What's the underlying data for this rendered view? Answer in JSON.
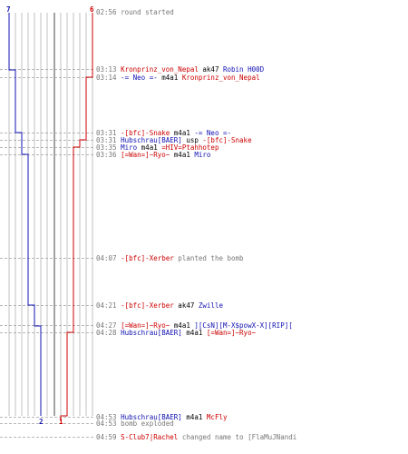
{
  "colors": {
    "team_blue": "#1010b0",
    "team_red": "#cc0000",
    "text_gray": "#777777",
    "text_dark": "#000000",
    "grid": "#c0c0c0",
    "grid_center": "#707070",
    "dash": "#a0a0a0"
  },
  "header": {
    "blue_count": "7",
    "red_count": "6"
  },
  "footer": {
    "blue_count": "2",
    "red_count": "1"
  },
  "events": [
    {
      "time": "02:56",
      "parts": [
        {
          "t": "round started",
          "c": "text_gray"
        }
      ]
    },
    {
      "time": "03:13",
      "parts": [
        {
          "t": "Kronprinz_von_Nepal",
          "c": "team_red"
        },
        {
          "t": " ak47 ",
          "c": "text_dark"
        },
        {
          "t": "Robin H00D",
          "c": "team_blue"
        }
      ]
    },
    {
      "time": "03:14",
      "parts": [
        {
          "t": "-= Neo =-",
          "c": "team_blue"
        },
        {
          "t": " m4a1 ",
          "c": "text_dark"
        },
        {
          "t": "Kronprinz_von_Nepal",
          "c": "team_red"
        }
      ]
    },
    {
      "time": "03:31",
      "parts": [
        {
          "t": "-[bfc]-Snake",
          "c": "team_red"
        },
        {
          "t": " m4a1 ",
          "c": "text_dark"
        },
        {
          "t": "-= Neo =-",
          "c": "team_blue"
        }
      ]
    },
    {
      "time": "03:31",
      "parts": [
        {
          "t": "Hubschrau[BAER]",
          "c": "team_blue"
        },
        {
          "t": " usp ",
          "c": "text_dark"
        },
        {
          "t": "-[bfc]-Snake",
          "c": "team_red"
        }
      ]
    },
    {
      "time": "03:35",
      "parts": [
        {
          "t": "Miro",
          "c": "team_blue"
        },
        {
          "t": " m4a1 ",
          "c": "text_dark"
        },
        {
          "t": "=HIV=Ptahhotep",
          "c": "team_red"
        }
      ]
    },
    {
      "time": "03:36",
      "parts": [
        {
          "t": "[=Wan=]~Ryo~",
          "c": "team_red"
        },
        {
          "t": " m4a1 ",
          "c": "text_dark"
        },
        {
          "t": "Miro",
          "c": "team_blue"
        }
      ]
    },
    {
      "time": "04:07",
      "parts": [
        {
          "t": "-[bfc]-Xerber",
          "c": "team_red"
        },
        {
          "t": " planted the bomb",
          "c": "text_gray"
        }
      ]
    },
    {
      "time": "04:21",
      "parts": [
        {
          "t": "-[bfc]-Xerber",
          "c": "team_red"
        },
        {
          "t": " ak47 ",
          "c": "text_dark"
        },
        {
          "t": "Zwille",
          "c": "team_blue"
        }
      ]
    },
    {
      "time": "04:27",
      "parts": [
        {
          "t": "[=Wan=]~Ryo~",
          "c": "team_red"
        },
        {
          "t": " m4a1 ",
          "c": "text_dark"
        },
        {
          "t": "][CsN][M-X$powX-X][RIP][",
          "c": "team_blue"
        }
      ]
    },
    {
      "time": "04:28",
      "parts": [
        {
          "t": "Hubschrau[BAER]",
          "c": "team_blue"
        },
        {
          "t": " m4a1 ",
          "c": "text_dark"
        },
        {
          "t": "[=Wan=]~Ryo~",
          "c": "team_red"
        }
      ]
    },
    {
      "time": "04:53",
      "parts": [
        {
          "t": "Hubschrau[BAER]",
          "c": "team_blue"
        },
        {
          "t": " m4a1 ",
          "c": "text_dark"
        },
        {
          "t": "McFly",
          "c": "team_red"
        }
      ]
    },
    {
      "time": "04:53",
      "parts": [
        {
          "t": "bomb exploded",
          "c": "text_gray"
        }
      ]
    },
    {
      "time": "04:59",
      "parts": [
        {
          "t": "S-Club7|Rachel",
          "c": "team_red"
        },
        {
          "t": " changed name to ",
          "c": "text_gray"
        },
        {
          "t": "[FlaMuJNandi",
          "c": "text_gray"
        }
      ]
    }
  ]
}
